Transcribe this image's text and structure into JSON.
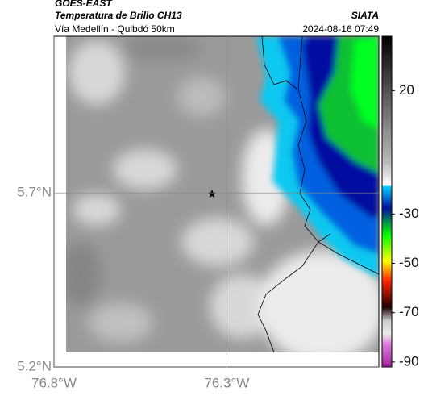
{
  "header": {
    "source": "GOES-EAST",
    "product": "Temperatura de Brillo CH13",
    "region": "Vía Medellín - Quibdó 50km",
    "agency": "SIATA",
    "timestamp": "2024-08-16 07:49"
  },
  "map": {
    "lat_range": [
      5.2,
      6.15
    ],
    "lon_range": [
      -76.8,
      -75.86
    ],
    "lat_ticks": [
      {
        "value": 5.7,
        "label": "5.7°N"
      },
      {
        "value": 5.2,
        "label": "5.2°N"
      }
    ],
    "lon_ticks": [
      {
        "value": -76.8,
        "label": "76.8°W"
      },
      {
        "value": -76.3,
        "label": "76.3°W"
      }
    ]
  },
  "colorbar": {
    "range": [
      -92,
      42
    ],
    "ticks": [
      20,
      -30,
      -50,
      -70,
      -90
    ]
  }
}
